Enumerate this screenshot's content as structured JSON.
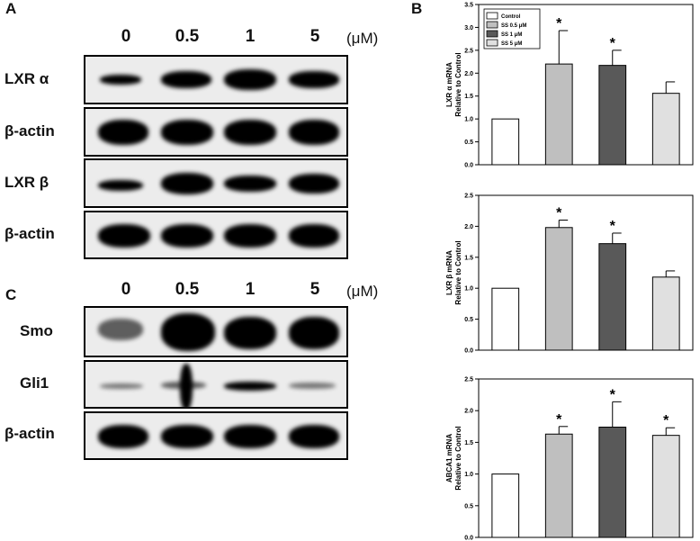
{
  "panels": {
    "a": "A",
    "b": "B",
    "c": "C"
  },
  "top_blot": {
    "concentrations": [
      "0",
      "0.5",
      "1",
      "5"
    ],
    "unit": "(μM)",
    "rows": [
      "LXR α",
      "β-actin",
      "LXR β",
      "β-actin"
    ]
  },
  "bottom_blot": {
    "concentrations": [
      "0",
      "0.5",
      "1",
      "5"
    ],
    "unit": "(μM)",
    "rows": [
      "Smo",
      "Gli1",
      "β-actin"
    ]
  },
  "colors": {
    "control": "#ffffff",
    "ss_0_5": "#bfbfbf",
    "ss_1": "#595959",
    "ss_5": "#e0e0e0"
  },
  "chart_data": [
    {
      "type": "bar",
      "ylabel": "LXR α mRNA Relative to Control",
      "ylim": [
        0,
        3.5
      ],
      "yticks": [
        "0.0",
        "0.5",
        "1.0",
        "1.5",
        "2.0",
        "2.5",
        "3.0",
        "3.5"
      ],
      "categories": [
        "Control",
        "SS 0.5 μM",
        "SS 1 μM",
        "SS 5 μM"
      ],
      "values": [
        1.0,
        2.2,
        2.17,
        1.56
      ],
      "errors": [
        0,
        0.73,
        0.33,
        0.25
      ],
      "significant": [
        "",
        "*",
        "*",
        ""
      ],
      "legend": [
        "Control",
        "SS 0.5 μM",
        "SS 1 μM",
        "SS 5 μM"
      ],
      "legend_position": "top-left"
    },
    {
      "type": "bar",
      "ylabel": "LXR β mRNA Relative to Control",
      "ylim": [
        0,
        2.5
      ],
      "yticks": [
        "0.0",
        "0.5",
        "1.0",
        "1.5",
        "2.0",
        "2.5"
      ],
      "categories": [
        "Control",
        "SS 0.5 μM",
        "SS 1 μM",
        "SS 5 μM"
      ],
      "values": [
        1.0,
        1.98,
        1.72,
        1.18
      ],
      "errors": [
        0,
        0.12,
        0.17,
        0.1
      ],
      "significant": [
        "",
        "*",
        "*",
        ""
      ]
    },
    {
      "type": "bar",
      "ylabel": "ABCA1 mRNA Relative to Control",
      "ylim": [
        0,
        2.5
      ],
      "yticks": [
        "0.0",
        "0.5",
        "1.0",
        "1.5",
        "2.0",
        "2.5"
      ],
      "categories": [
        "Control",
        "SS 0.5 μM",
        "SS 1 μM",
        "SS 5 μM"
      ],
      "values": [
        1.0,
        1.63,
        1.74,
        1.61
      ],
      "errors": [
        0,
        0.12,
        0.4,
        0.12
      ],
      "significant": [
        "",
        "*",
        "*",
        "*"
      ]
    }
  ]
}
